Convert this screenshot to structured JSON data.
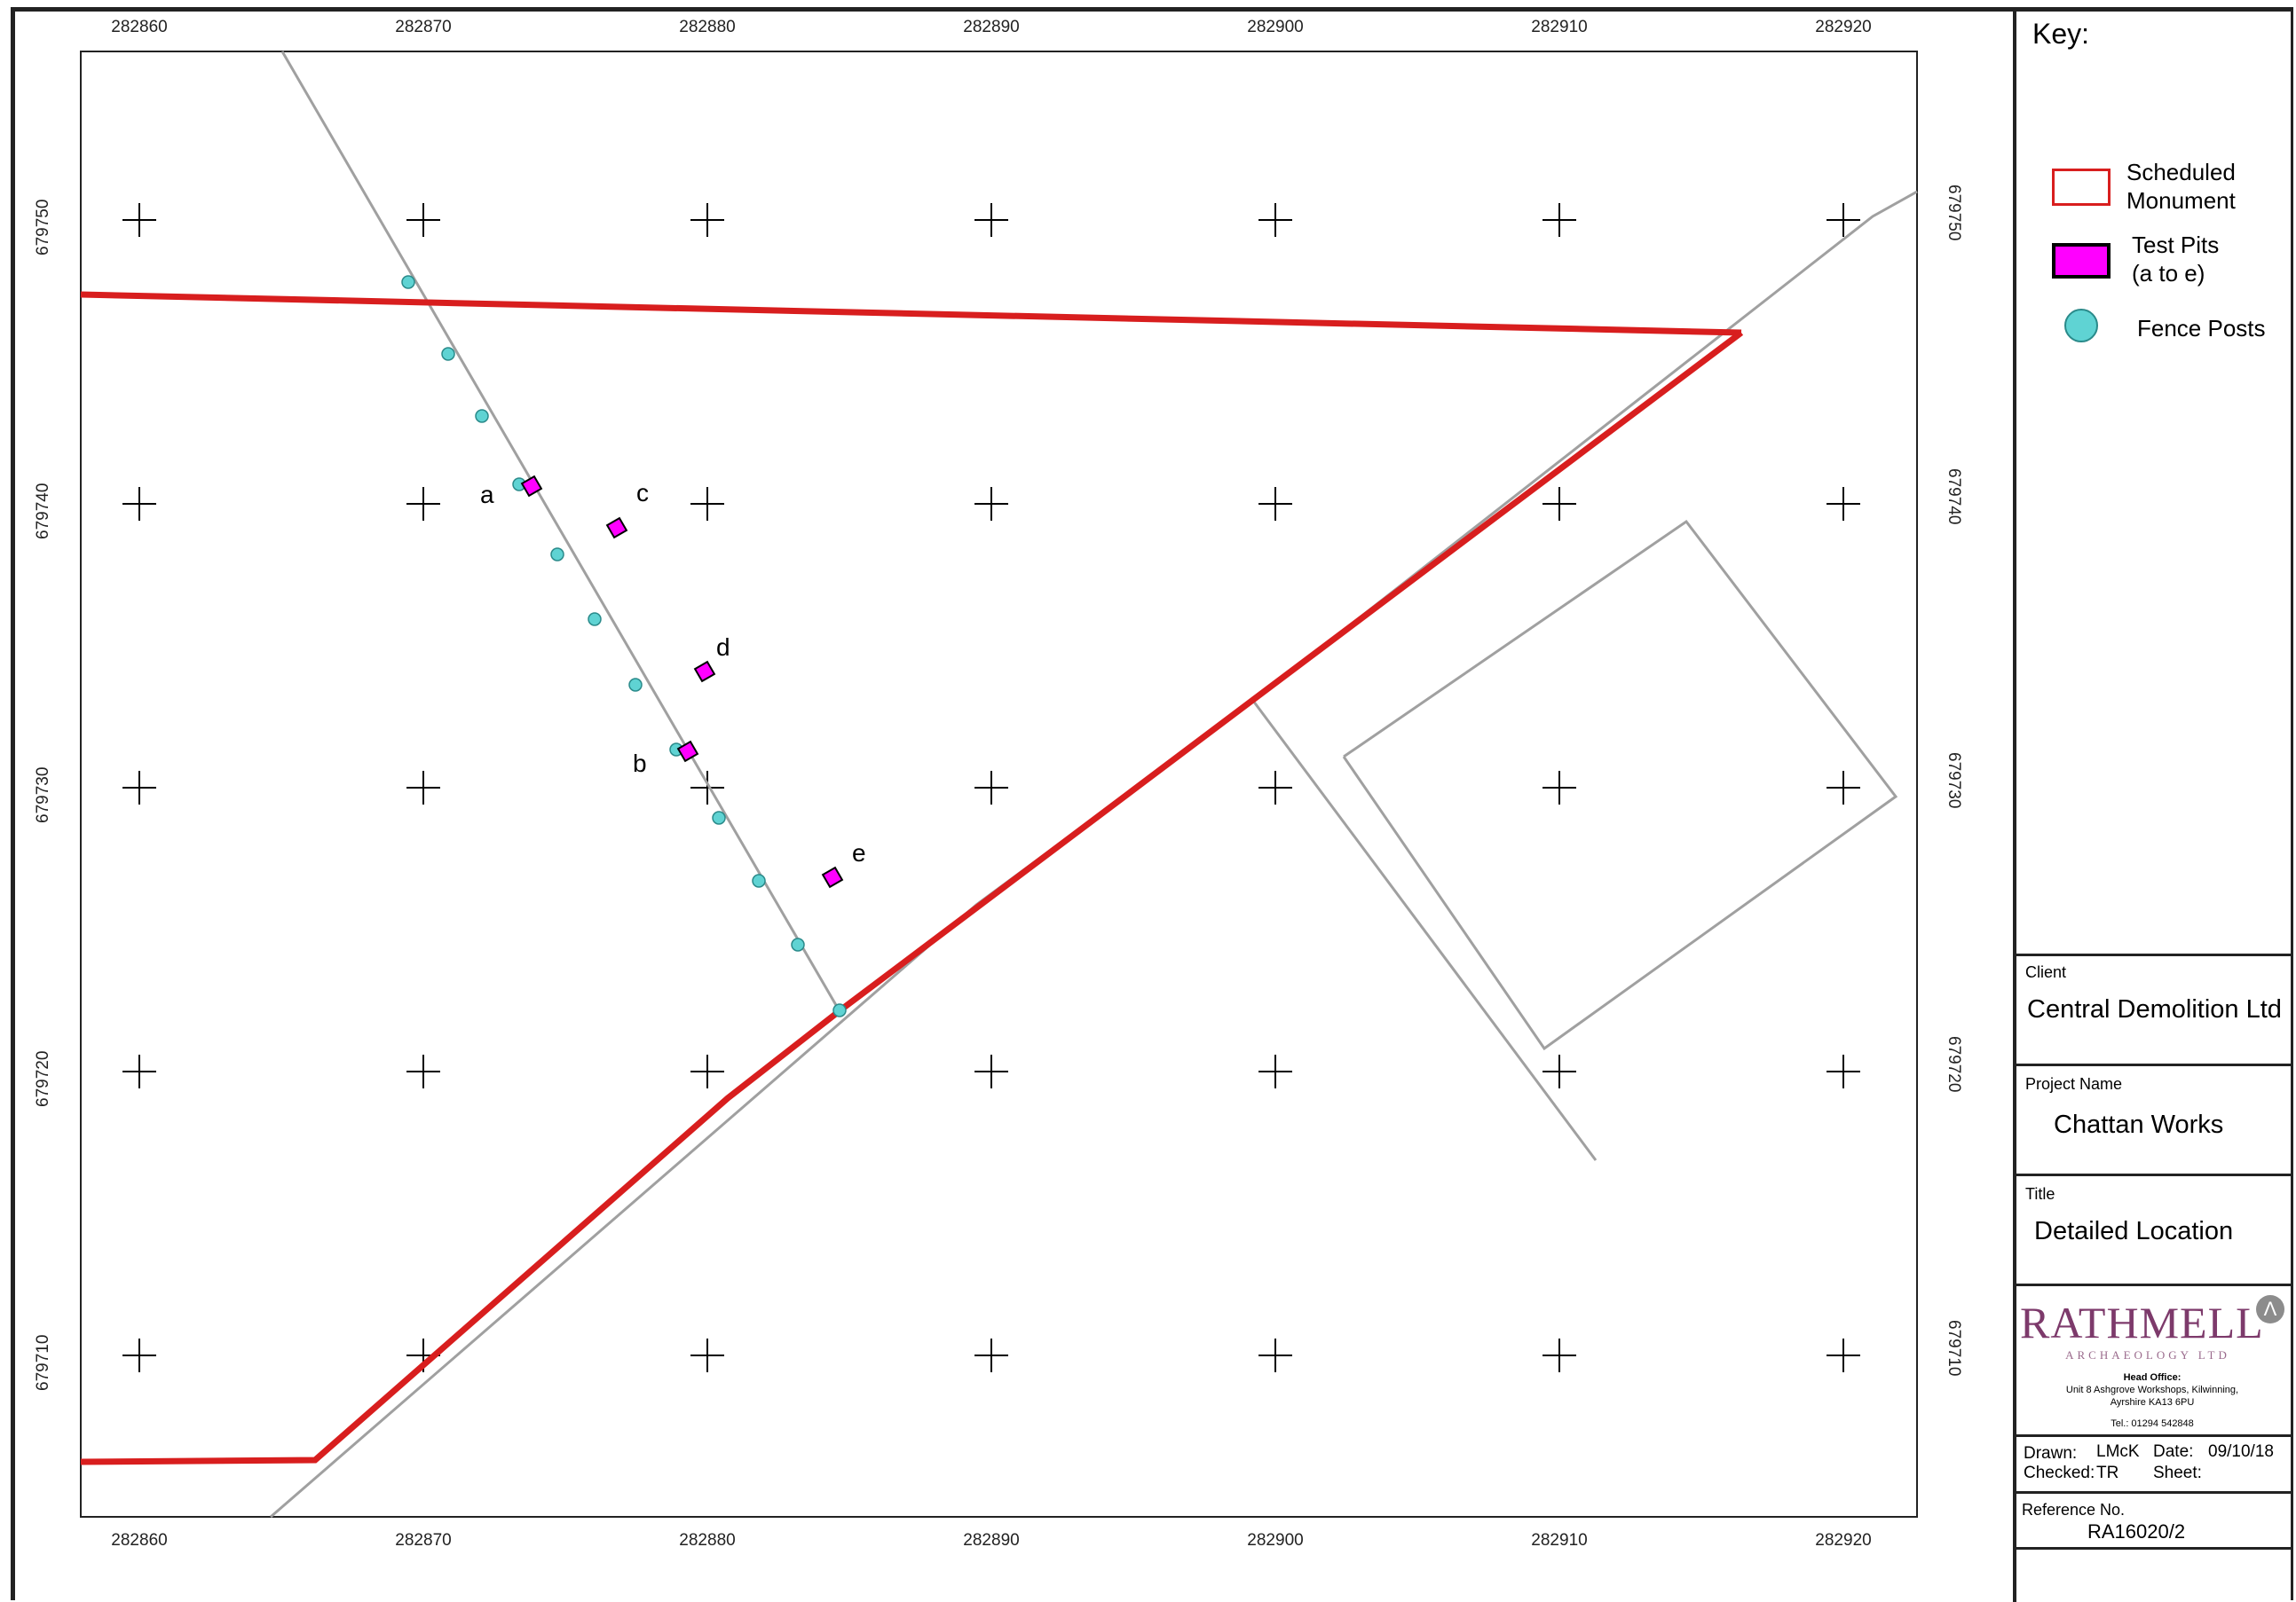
{
  "map": {
    "x_ticks": [
      "282860",
      "282870",
      "282880",
      "282890",
      "282900",
      "282910",
      "282920"
    ],
    "y_ticks": [
      "679750",
      "679740",
      "679730",
      "679720",
      "679710"
    ],
    "pit_labels": [
      "a",
      "b",
      "c",
      "d",
      "e"
    ],
    "colors": {
      "scheduled_monument": "#d81e1e",
      "test_pit_fill": "#ff00ff",
      "fence_post": "#5fd3d3",
      "feature_line": "#a0a0a0",
      "grid_cross": "#000000"
    }
  },
  "key": {
    "title": "Key:",
    "items": [
      {
        "label_line1": "Scheduled",
        "label_line2": "Monument",
        "swatch": "red-outline-rect"
      },
      {
        "label_line1": "Test Pits",
        "label_line2": "(a to e)",
        "swatch": "magenta-rect"
      },
      {
        "label_line1": "Fence Posts",
        "label_line2": "",
        "swatch": "cyan-circle"
      }
    ]
  },
  "title_block": {
    "client_caption": "Client",
    "client": "Central Demolition Ltd",
    "project_caption": "Project Name",
    "project": "Chattan Works",
    "title_caption": "Title",
    "title": "Detailed Location",
    "logo": {
      "name": "RATHMELL",
      "sub": "ARCHAEOLOGY LTD",
      "icon": "lambda-icon",
      "head_office_label": "Head Office:",
      "address_line1": "Unit 8 Ashgrove Workshops, Kilwinning,",
      "address_line2": "Ayrshire KA13 6PU",
      "tel": "Tel.: 01294 542848"
    },
    "drawn_label": "Drawn:",
    "drawn_value": "LMcK",
    "date_label": "Date:",
    "date_value": "09/10/18",
    "checked_label": "Checked:",
    "checked_value": "TR",
    "sheet_label": "Sheet:",
    "sheet_value": "",
    "reference_caption": "Reference No.",
    "reference": "RA16020/2"
  }
}
